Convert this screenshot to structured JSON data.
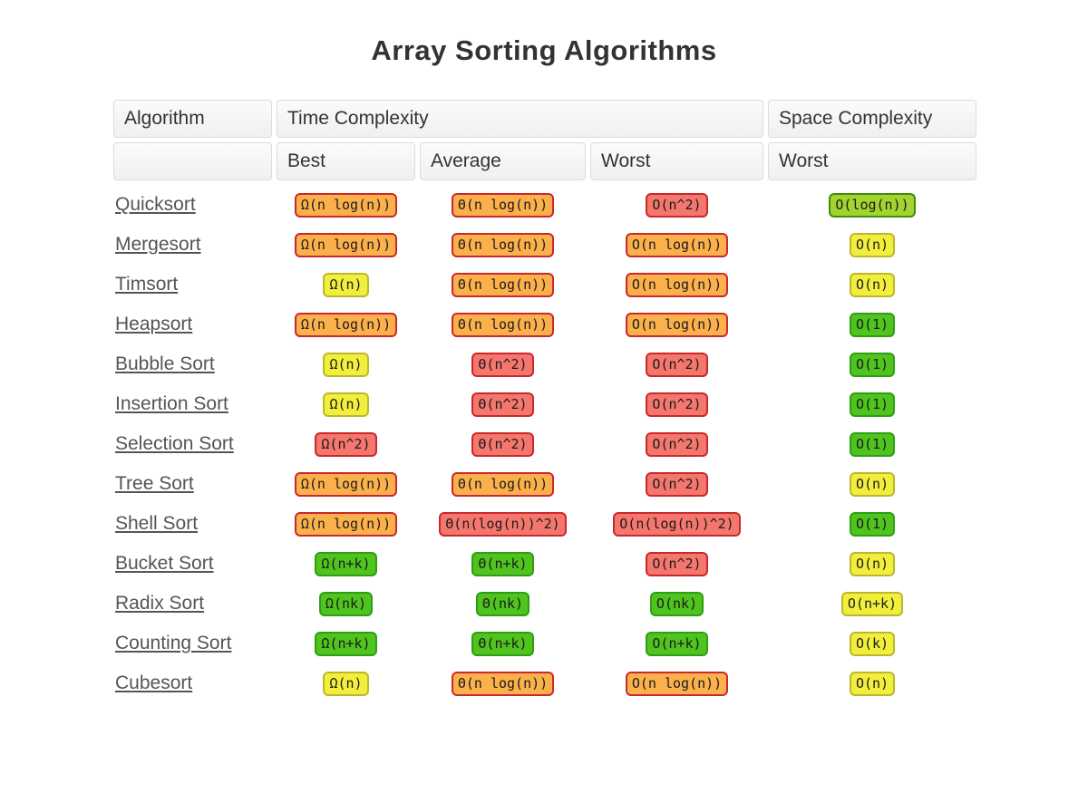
{
  "title": "Array Sorting Algorithms",
  "table": {
    "headers": {
      "algorithm": "Algorithm",
      "time_complexity": "Time Complexity",
      "space_complexity": "Space Complexity",
      "best": "Best",
      "average": "Average",
      "worst": "Worst",
      "space_worst": "Worst"
    },
    "rows": [
      {
        "name": "Quicksort",
        "best": {
          "text": "Ω(n log(n))",
          "level": "orange"
        },
        "average": {
          "text": "Θ(n log(n))",
          "level": "orange"
        },
        "worst": {
          "text": "O(n^2)",
          "level": "red"
        },
        "space_worst": {
          "text": "O(log(n))",
          "level": "yellowgreen"
        }
      },
      {
        "name": "Mergesort",
        "best": {
          "text": "Ω(n log(n))",
          "level": "orange"
        },
        "average": {
          "text": "Θ(n log(n))",
          "level": "orange"
        },
        "worst": {
          "text": "O(n log(n))",
          "level": "orange"
        },
        "space_worst": {
          "text": "O(n)",
          "level": "yellow"
        }
      },
      {
        "name": "Timsort",
        "best": {
          "text": "Ω(n)",
          "level": "yellow"
        },
        "average": {
          "text": "Θ(n log(n))",
          "level": "orange"
        },
        "worst": {
          "text": "O(n log(n))",
          "level": "orange"
        },
        "space_worst": {
          "text": "O(n)",
          "level": "yellow"
        }
      },
      {
        "name": "Heapsort",
        "best": {
          "text": "Ω(n log(n))",
          "level": "orange"
        },
        "average": {
          "text": "Θ(n log(n))",
          "level": "orange"
        },
        "worst": {
          "text": "O(n log(n))",
          "level": "orange"
        },
        "space_worst": {
          "text": "O(1)",
          "level": "green"
        }
      },
      {
        "name": "Bubble Sort",
        "best": {
          "text": "Ω(n)",
          "level": "yellow"
        },
        "average": {
          "text": "Θ(n^2)",
          "level": "red"
        },
        "worst": {
          "text": "O(n^2)",
          "level": "red"
        },
        "space_worst": {
          "text": "O(1)",
          "level": "green"
        }
      },
      {
        "name": "Insertion Sort",
        "best": {
          "text": "Ω(n)",
          "level": "yellow"
        },
        "average": {
          "text": "Θ(n^2)",
          "level": "red"
        },
        "worst": {
          "text": "O(n^2)",
          "level": "red"
        },
        "space_worst": {
          "text": "O(1)",
          "level": "green"
        }
      },
      {
        "name": "Selection Sort",
        "best": {
          "text": "Ω(n^2)",
          "level": "red"
        },
        "average": {
          "text": "Θ(n^2)",
          "level": "red"
        },
        "worst": {
          "text": "O(n^2)",
          "level": "red"
        },
        "space_worst": {
          "text": "O(1)",
          "level": "green"
        }
      },
      {
        "name": "Tree Sort",
        "best": {
          "text": "Ω(n log(n))",
          "level": "orange"
        },
        "average": {
          "text": "Θ(n log(n))",
          "level": "orange"
        },
        "worst": {
          "text": "O(n^2)",
          "level": "red"
        },
        "space_worst": {
          "text": "O(n)",
          "level": "yellow"
        }
      },
      {
        "name": "Shell Sort",
        "best": {
          "text": "Ω(n log(n))",
          "level": "orange"
        },
        "average": {
          "text": "Θ(n(log(n))^2)",
          "level": "red"
        },
        "worst": {
          "text": "O(n(log(n))^2)",
          "level": "red"
        },
        "space_worst": {
          "text": "O(1)",
          "level": "green"
        }
      },
      {
        "name": "Bucket Sort",
        "best": {
          "text": "Ω(n+k)",
          "level": "green"
        },
        "average": {
          "text": "Θ(n+k)",
          "level": "green"
        },
        "worst": {
          "text": "O(n^2)",
          "level": "red"
        },
        "space_worst": {
          "text": "O(n)",
          "level": "yellow"
        }
      },
      {
        "name": "Radix Sort",
        "best": {
          "text": "Ω(nk)",
          "level": "green"
        },
        "average": {
          "text": "Θ(nk)",
          "level": "green"
        },
        "worst": {
          "text": "O(nk)",
          "level": "green"
        },
        "space_worst": {
          "text": "O(n+k)",
          "level": "yellow"
        }
      },
      {
        "name": "Counting Sort",
        "best": {
          "text": "Ω(n+k)",
          "level": "green"
        },
        "average": {
          "text": "Θ(n+k)",
          "level": "green"
        },
        "worst": {
          "text": "O(n+k)",
          "level": "green"
        },
        "space_worst": {
          "text": "O(k)",
          "level": "yellow"
        }
      },
      {
        "name": "Cubesort",
        "best": {
          "text": "Ω(n)",
          "level": "yellow"
        },
        "average": {
          "text": "Θ(n log(n))",
          "level": "orange"
        },
        "worst": {
          "text": "O(n log(n))",
          "level": "orange"
        },
        "space_worst": {
          "text": "O(n)",
          "level": "yellow"
        }
      }
    ]
  },
  "colors": {
    "red": {
      "bg": "#F4766D",
      "border": "#C9282D"
    },
    "orange": {
      "bg": "#FBB04C",
      "border": "#C9282D"
    },
    "yellow": {
      "bg": "#F2EE3C",
      "border": "#BDB72D"
    },
    "green": {
      "bg": "#4FC41E",
      "border": "#2F9E14"
    },
    "yellowgreen": {
      "bg": "#A3D32E",
      "border": "#3E8D0F"
    }
  }
}
